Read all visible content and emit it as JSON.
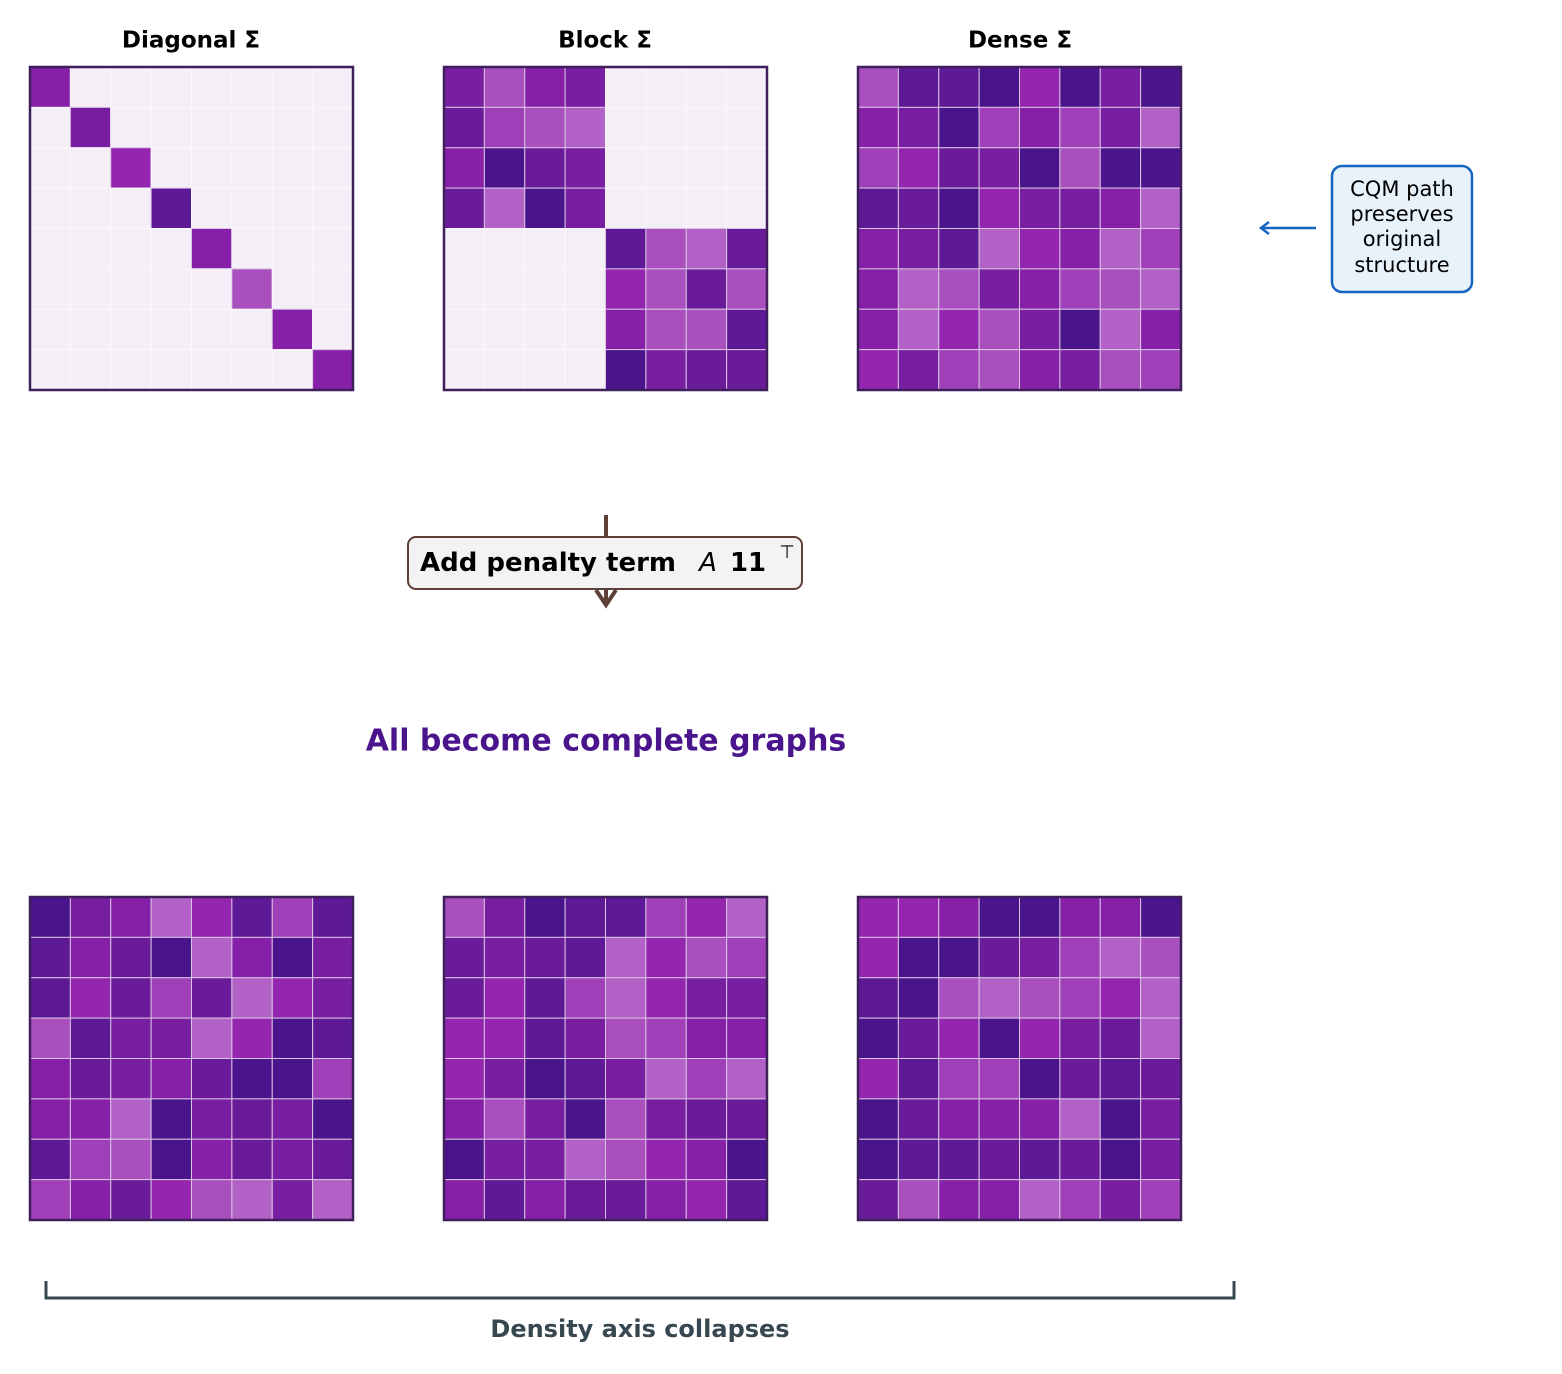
{
  "panels": [
    {
      "title": "Diagonal Σ"
    },
    {
      "title": "Block Σ"
    },
    {
      "title": "Dense Σ"
    }
  ],
  "annotation": {
    "lines": [
      "CQM path",
      "preserves",
      "original",
      "structure"
    ]
  },
  "penalty_box": {
    "label": "Add penalty term",
    "symbol": "A",
    "vector": "11",
    "transpose": "⊤"
  },
  "result_caption": "All become complete graphs",
  "bracket_caption": "Density axis collapses"
}
